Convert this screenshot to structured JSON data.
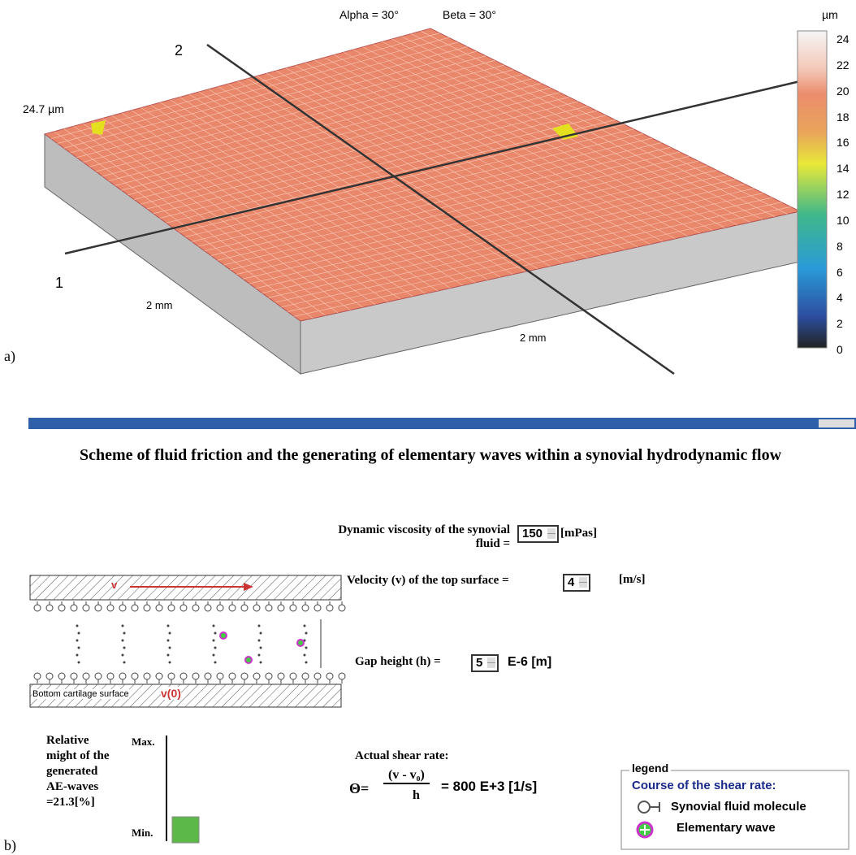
{
  "panel_a": {
    "view_angles": [
      "Alpha = 30°",
      "Beta = 30°"
    ],
    "unit": "µm",
    "height_label": "24.7 µm",
    "axis_labels": [
      "1",
      "2"
    ],
    "dims": [
      "2 mm",
      "2 mm"
    ],
    "colorbar_ticks": [
      24,
      22,
      20,
      18,
      16,
      14,
      12,
      10,
      8,
      6,
      4,
      2,
      0
    ],
    "label": "a)"
  },
  "panel_b": {
    "title": "Scheme of fluid friction and the generating of elementary waves within a synovial hydrodynamic flow",
    "viscosity": {
      "label": "Dynamic viscosity of the synovial fluid =",
      "value": "150",
      "unit": "[mPas]"
    },
    "velocity": {
      "label": "Velocity (v) of the top surface =",
      "value": "4",
      "unit": "[m/s]"
    },
    "gap": {
      "label": "Gap height (h) =",
      "value": "5",
      "unit": "E-6 [m]"
    },
    "shear": {
      "label": "Actual shear rate:",
      "symbol": "Θ=",
      "numerator": "(v - v₀)",
      "denominator": "h",
      "result": "= 800 E+3 [1/s]"
    },
    "scheme": {
      "top_velocity": "v",
      "bottom_label": "Bottom cartilage surface",
      "bottom_velocity": "v(0)"
    },
    "might": {
      "label": "Relative might of the generated AE-waves =21.3[%]",
      "max": "Max.",
      "min": "Min."
    },
    "legend": {
      "title": "legend",
      "subtitle": "Course of the shear rate:",
      "items": [
        "Synovial fluid molecule",
        "Elementary wave"
      ]
    },
    "label": "b)"
  }
}
